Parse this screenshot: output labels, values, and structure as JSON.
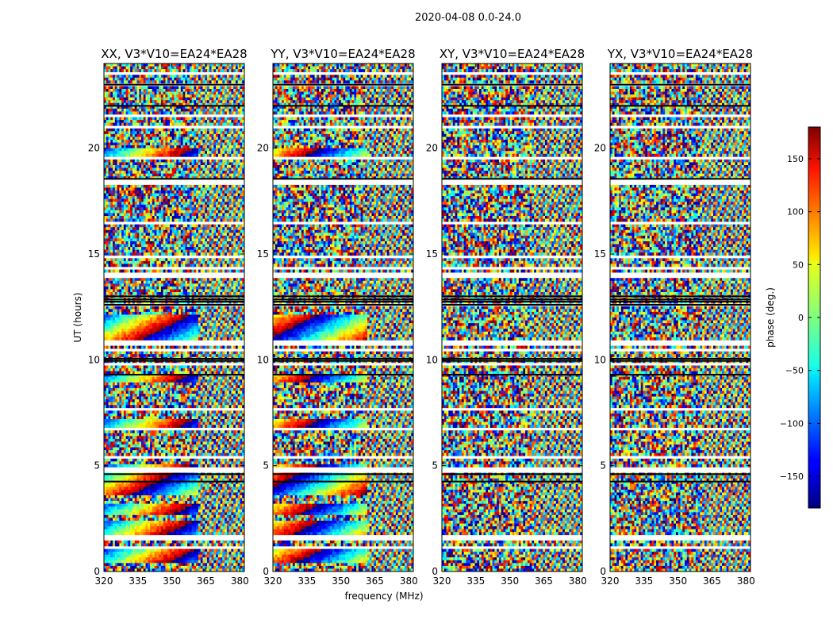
{
  "chart_data": {
    "type": "heatmap",
    "title": "2020-04-08 0.0-24.0",
    "xlabel": "frequency (MHz)",
    "ylabel": "UT (hours)",
    "xlim": [
      320,
      382
    ],
    "ylim": [
      0,
      24
    ],
    "x_ticks": [
      320,
      335,
      350,
      365,
      380
    ],
    "y_ticks": [
      0,
      5,
      10,
      15,
      20
    ],
    "colorbar": {
      "label": "phase (deg.)",
      "range": [
        -180,
        180
      ],
      "ticks": [
        150,
        100,
        50,
        0,
        -50,
        -100,
        -150
      ],
      "tick_labels": [
        "150",
        "100",
        "50",
        "0",
        "−50",
        "−100",
        "−150"
      ],
      "colormap": "jet"
    },
    "panels": [
      {
        "title": "XX, V3*V10=EA24*EA28",
        "coherent_bands": [
          [
            4.0,
            4.4
          ],
          [
            11.8,
            13.0
          ],
          [
            14.6,
            15.0
          ],
          [
            16.8,
            17.2
          ],
          [
            18.9,
            20.4
          ],
          [
            20.8,
            21.3
          ],
          [
            21.6,
            22.3
          ],
          [
            23.0,
            23.6
          ]
        ]
      },
      {
        "title": "YY, V3*V10=EA24*EA28",
        "coherent_bands": [
          [
            4.0,
            4.4
          ],
          [
            11.8,
            13.0
          ],
          [
            14.6,
            15.0
          ],
          [
            16.8,
            17.2
          ],
          [
            18.9,
            20.4
          ],
          [
            20.8,
            21.3
          ],
          [
            21.6,
            22.3
          ],
          [
            23.0,
            23.6
          ]
        ]
      },
      {
        "title": "XY, V3*V10=EA24*EA28",
        "coherent_bands": []
      },
      {
        "title": "YX, V3*V10=EA24*EA28",
        "coherent_bands": []
      }
    ],
    "flagged_rows_ut": [
      0.5,
      1.0,
      2.5,
      3.0,
      4.5,
      5.6,
      7.5,
      9.1,
      9.7,
      10.0,
      11.4,
      13.2,
      13.5,
      14.2,
      16.3,
      17.3,
      18.6,
      19.2,
      22.4,
      22.9
    ],
    "black_rows_ut": [
      4.25,
      9.95,
      10.05,
      12.6,
      12.75,
      12.85,
      13.0,
      18.55,
      22.0,
      23.0,
      4.6,
      9.3
    ]
  }
}
